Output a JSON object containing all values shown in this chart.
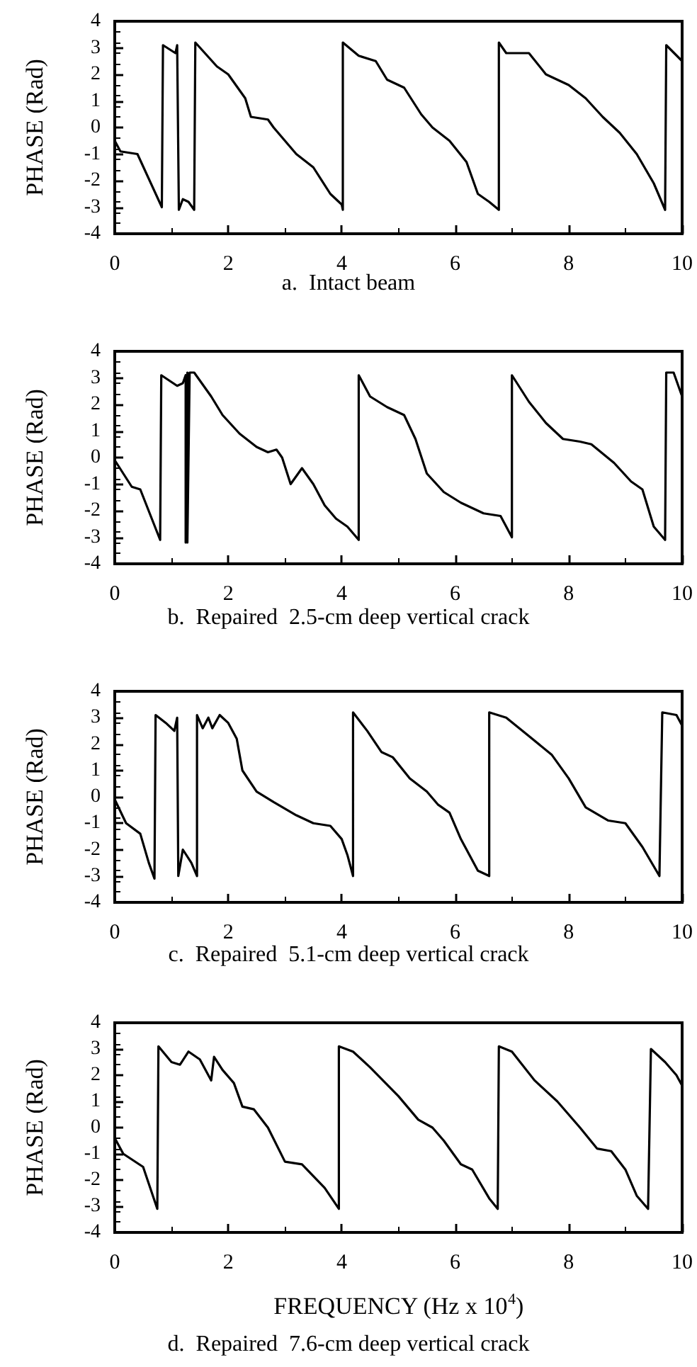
{
  "chart_data": [
    {
      "type": "line",
      "title": "a.  Intact beam",
      "ylabel": "PHASE (Rad)",
      "xlim": [
        0,
        10
      ],
      "xticks": [
        0,
        2,
        4,
        6,
        8,
        10
      ],
      "ylim": [
        -4,
        4
      ],
      "yticks": [
        -4,
        -3,
        -2,
        -1,
        0,
        1,
        2,
        3,
        4
      ],
      "grid": false,
      "series": [
        {
          "color": "#000000",
          "x": [
            0,
            0.1,
            0.4,
            0.83,
            0.85,
            1.07,
            1.1,
            1.13,
            1.2,
            1.3,
            1.4,
            1.42,
            1.8,
            2.0,
            2.3,
            2.4,
            2.7,
            2.8,
            3.2,
            3.5,
            3.8,
            4.0,
            4.02,
            4.02,
            4.3,
            4.6,
            4.8,
            5.1,
            5.4,
            5.6,
            5.9,
            6.2,
            6.4,
            6.6,
            6.77,
            6.77,
            6.9,
            7.3,
            7.6,
            8.0,
            8.3,
            8.6,
            8.9,
            9.2,
            9.5,
            9.7,
            9.72,
            10
          ],
          "values": [
            -0.5,
            -0.9,
            -1,
            -3,
            3.1,
            2.8,
            3.1,
            -3.1,
            -2.7,
            -2.8,
            -3.1,
            3.2,
            2.3,
            2.0,
            1.1,
            0.4,
            0.3,
            0,
            -1,
            -1.5,
            -2.5,
            -2.9,
            -3.1,
            3.2,
            2.7,
            2.5,
            1.8,
            1.5,
            0.5,
            0,
            -0.5,
            -1.3,
            -2.5,
            -2.8,
            -3.1,
            3.2,
            2.8,
            2.8,
            2.0,
            1.6,
            1.1,
            0.4,
            -0.2,
            -1,
            -2.1,
            -3.1,
            3.1,
            2.5
          ]
        }
      ]
    },
    {
      "type": "line",
      "title": "b.  Repaired  2.5-cm deep vertical crack",
      "ylabel": "PHASE (Rad)",
      "xlim": [
        0,
        10
      ],
      "xticks": [
        0,
        2,
        4,
        6,
        8,
        10
      ],
      "ylim": [
        -4,
        4
      ],
      "yticks": [
        -4,
        -3,
        -2,
        -1,
        0,
        1,
        2,
        3,
        4
      ],
      "grid": false,
      "series": [
        {
          "color": "#000000",
          "x": [
            0,
            0.3,
            0.45,
            0.8,
            0.82,
            1.1,
            1.2,
            1.25,
            1.25,
            1.28,
            1.28,
            1.32,
            1.4,
            1.7,
            1.9,
            2.2,
            2.5,
            2.7,
            2.85,
            2.95,
            3.1,
            3.3,
            3.5,
            3.7,
            3.9,
            4.1,
            4.3,
            4.3,
            4.5,
            4.8,
            5.1,
            5.3,
            5.5,
            5.8,
            6.1,
            6.5,
            6.8,
            7.0,
            7.0,
            7.3,
            7.6,
            7.9,
            8.2,
            8.4,
            8.8,
            9.1,
            9.3,
            9.5,
            9.7,
            9.72,
            9.85,
            10
          ],
          "values": [
            -0.1,
            -1.1,
            -1.2,
            -3.1,
            3.1,
            2.7,
            2.8,
            3.1,
            -3.2,
            3.2,
            -3.2,
            3.2,
            3.2,
            2.3,
            1.6,
            0.9,
            0.4,
            0.2,
            0.3,
            0,
            -1,
            -0.4,
            -1,
            -1.8,
            -2.3,
            -2.6,
            -3.1,
            3.1,
            2.3,
            1.9,
            1.6,
            0.7,
            -0.6,
            -1.3,
            -1.7,
            -2.1,
            -2.2,
            -3,
            3.1,
            2.1,
            1.3,
            0.7,
            0.6,
            0.5,
            -0.2,
            -0.9,
            -1.2,
            -2.6,
            -3.1,
            3.2,
            3.2,
            2.3
          ]
        }
      ]
    },
    {
      "type": "line",
      "title": "c.  Repaired  5.1-cm deep vertical crack",
      "ylabel": "PHASE (Rad)",
      "xlim": [
        0,
        10
      ],
      "xticks": [
        0,
        2,
        4,
        6,
        8,
        10
      ],
      "ylim": [
        -4,
        4
      ],
      "yticks": [
        -4,
        -3,
        -2,
        -1,
        0,
        1,
        2,
        3,
        4
      ],
      "grid": false,
      "series": [
        {
          "color": "#000000",
          "x": [
            0,
            0.2,
            0.45,
            0.6,
            0.7,
            0.72,
            0.9,
            1.05,
            1.1,
            1.12,
            1.2,
            1.35,
            1.45,
            1.45,
            1.55,
            1.65,
            1.72,
            1.85,
            2.0,
            2.15,
            2.25,
            2.5,
            2.8,
            3.2,
            3.5,
            3.8,
            4.0,
            4.1,
            4.2,
            4.2,
            4.45,
            4.7,
            4.9,
            5.2,
            5.5,
            5.7,
            5.9,
            6.1,
            6.4,
            6.6,
            6.6,
            6.9,
            7.3,
            7.7,
            8.0,
            8.3,
            8.7,
            9.0,
            9.3,
            9.6,
            9.65,
            9.9,
            10
          ],
          "values": [
            -0.1,
            -1,
            -1.4,
            -2.5,
            -3.1,
            3.1,
            2.8,
            2.5,
            3,
            -3,
            -2,
            -2.5,
            -3,
            3.1,
            2.6,
            3,
            2.6,
            3.1,
            2.8,
            2.2,
            1,
            0.2,
            -0.2,
            -0.7,
            -1,
            -1.1,
            -1.6,
            -2.2,
            -3,
            3.2,
            2.5,
            1.7,
            1.5,
            0.7,
            0.2,
            -0.3,
            -0.6,
            -1.6,
            -2.8,
            -3,
            3.2,
            3,
            2.3,
            1.6,
            0.7,
            -0.4,
            -0.9,
            -1,
            -1.9,
            -3,
            3.2,
            3.1,
            2.7
          ]
        }
      ]
    },
    {
      "type": "line",
      "title": "d.  Repaired  7.6-cm deep vertical crack",
      "xlabel": "FREQUENCY (Hz x 10$^{4}$)",
      "ylabel": "PHASE (Rad)",
      "xlim": [
        0,
        10
      ],
      "xticks": [
        0,
        2,
        4,
        6,
        8,
        10
      ],
      "ylim": [
        -4,
        4
      ],
      "yticks": [
        -4,
        -3,
        -2,
        -1,
        0,
        1,
        2,
        3,
        4
      ],
      "grid": false,
      "series": [
        {
          "color": "#000000",
          "x": [
            0,
            0.15,
            0.5,
            0.75,
            0.77,
            1.0,
            1.15,
            1.3,
            1.5,
            1.7,
            1.75,
            1.9,
            2.1,
            2.25,
            2.45,
            2.7,
            3.0,
            3.3,
            3.7,
            3.95,
            3.95,
            4.2,
            4.5,
            5.0,
            5.35,
            5.6,
            5.8,
            6.1,
            6.3,
            6.6,
            6.75,
            6.77,
            7.0,
            7.4,
            7.8,
            8.2,
            8.5,
            8.75,
            9.0,
            9.2,
            9.4,
            9.45,
            9.7,
            9.9,
            10
          ],
          "values": [
            -0.4,
            -1,
            -1.5,
            -3.1,
            3.1,
            2.5,
            2.4,
            2.9,
            2.6,
            1.8,
            2.7,
            2.2,
            1.7,
            0.8,
            0.7,
            0,
            -1.3,
            -1.4,
            -2.3,
            -3.1,
            3.1,
            2.9,
            2.3,
            1.2,
            0.3,
            0,
            -0.5,
            -1.4,
            -1.6,
            -2.7,
            -3.1,
            3.1,
            2.9,
            1.8,
            1,
            0,
            -0.8,
            -0.9,
            -1.6,
            -2.6,
            -3.1,
            3,
            2.5,
            2,
            1.6
          ]
        }
      ]
    }
  ]
}
